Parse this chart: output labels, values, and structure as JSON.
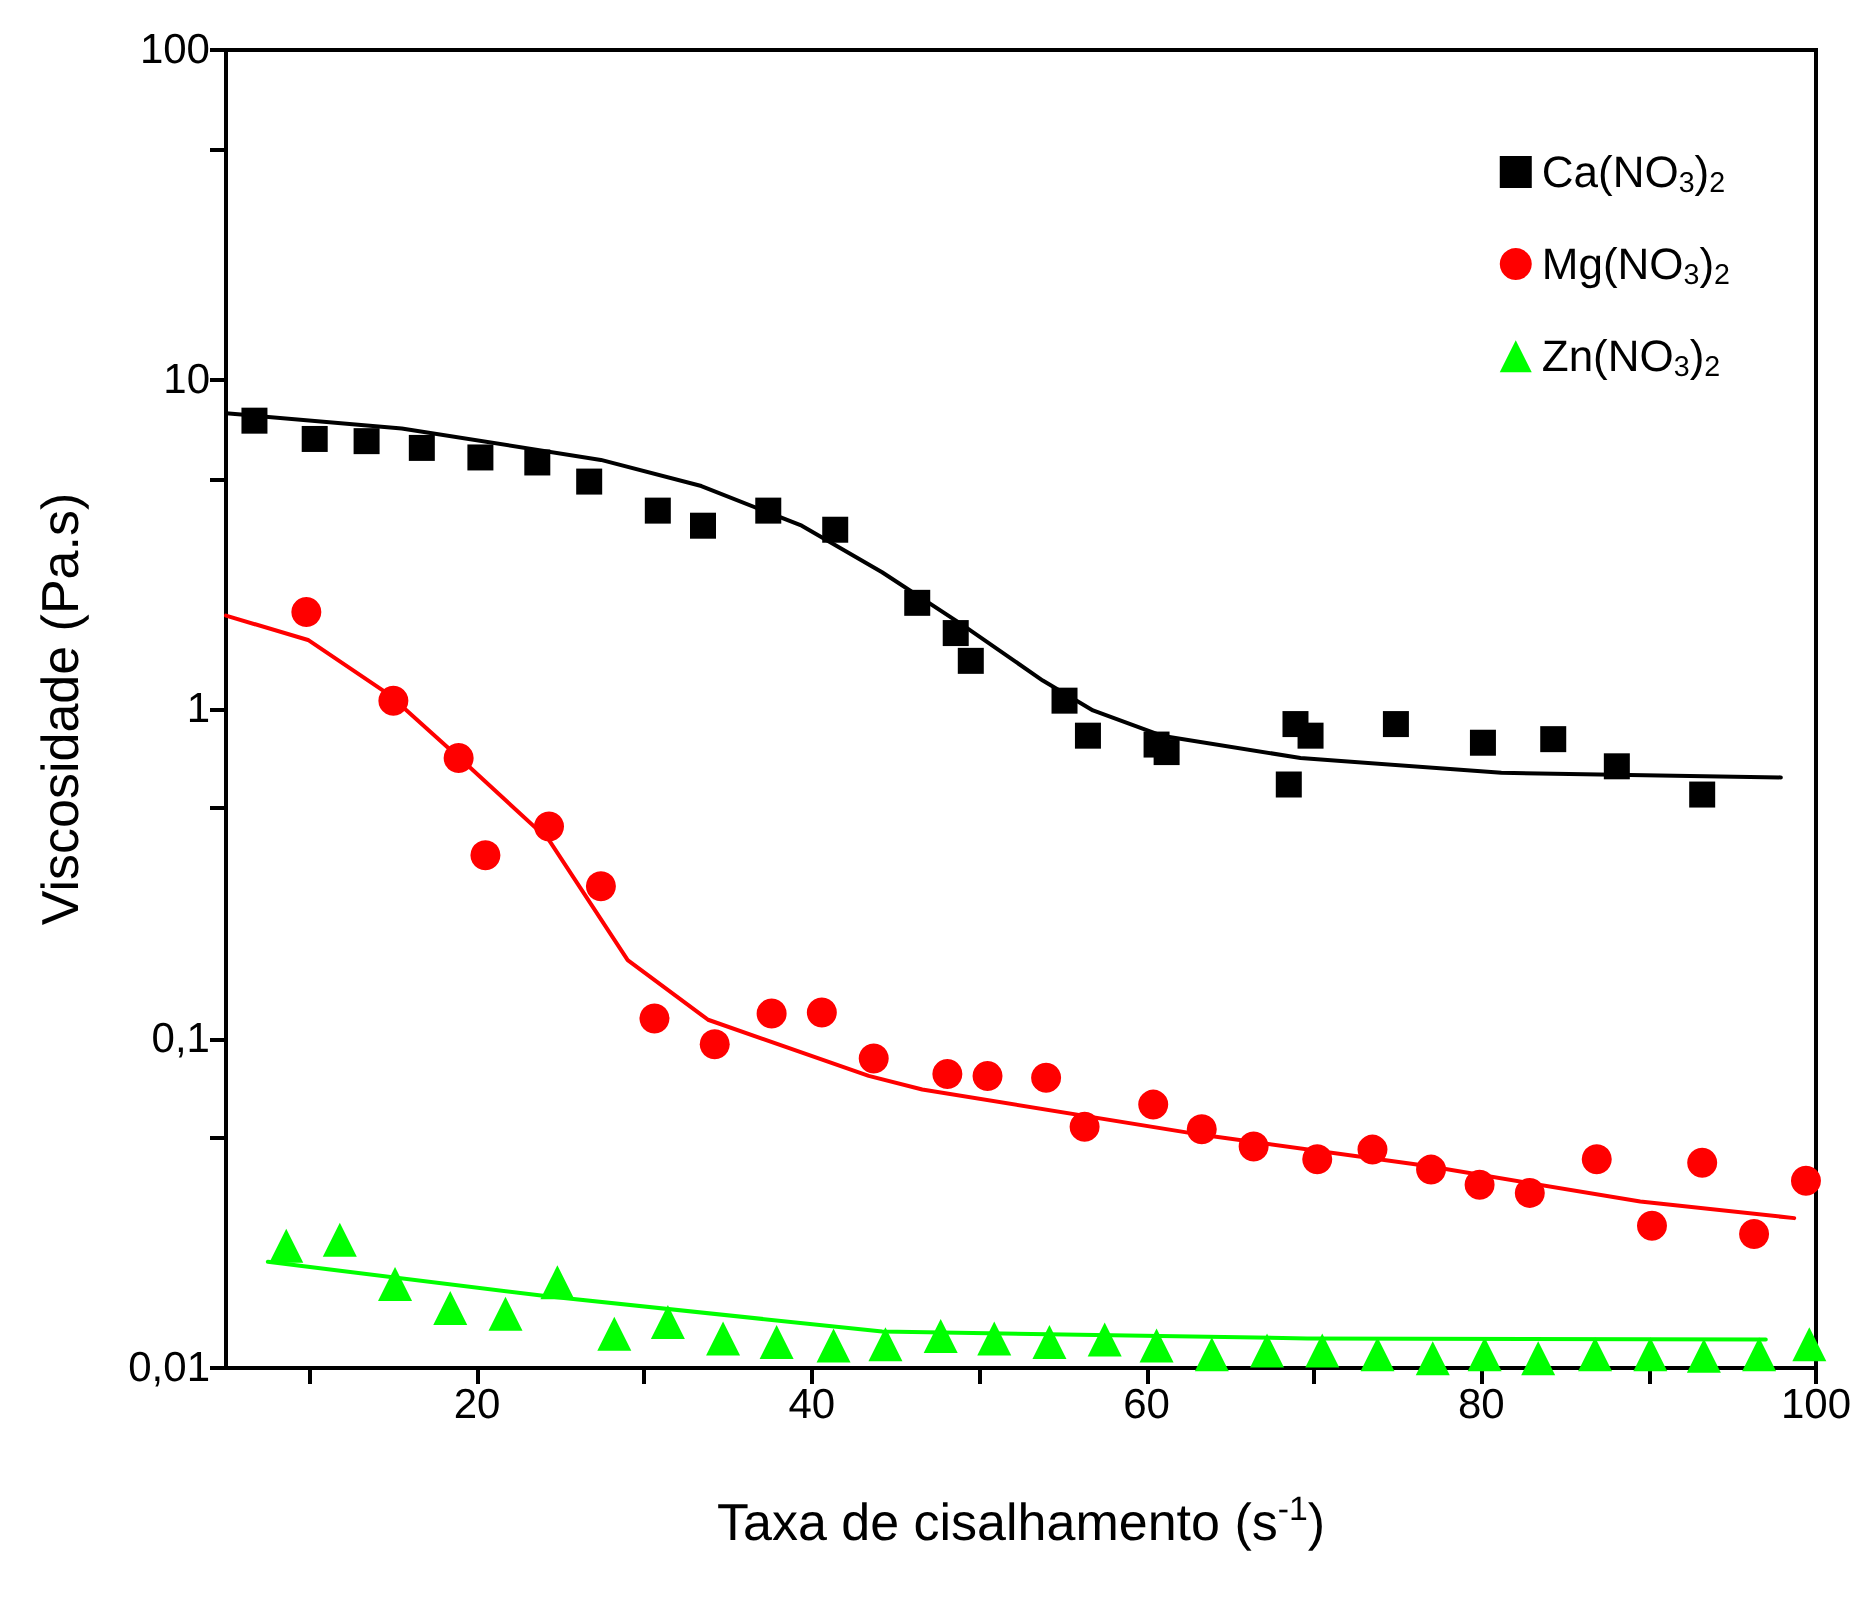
{
  "chart_data": {
    "type": "scatter",
    "xlabel": "Taxa de cisalhamento (s$^{-1}$)",
    "ylabel": "Viscosidade (Pa.s)",
    "log": "y",
    "legend": "top right",
    "grid": false,
    "xlim": [
      5,
      100
    ],
    "xticks": [
      {
        "value": 10,
        "label": null
      },
      20,
      {
        "value": 30,
        "label": null
      },
      40,
      {
        "value": 50,
        "label": null
      },
      60,
      {
        "value": 70,
        "label": null
      },
      80,
      {
        "value": 90,
        "label": null
      },
      100
    ],
    "ylim": [
      0.01,
      100
    ],
    "yticks": [
      {
        "value": 0.01,
        "label": "0,01"
      },
      {
        "value": 0.05,
        "label": null
      },
      {
        "value": 0.1,
        "label": "0,1"
      },
      {
        "value": 0.5,
        "label": null
      },
      1,
      {
        "value": 5,
        "label": null
      },
      10,
      {
        "value": 50,
        "label": null
      },
      100
    ],
    "series": [
      {
        "name": "Ca(NO$_{3}$)$_{2}$",
        "marker": "square",
        "color": "#000000",
        "x": [
          6.7,
          10.3,
          13.4,
          16.7,
          20.2,
          23.6,
          26.7,
          30.8,
          33.5,
          37.4,
          41.4,
          46.3,
          48.6,
          49.5,
          55.1,
          56.5,
          60.6,
          61.2,
          68.5,
          68.9,
          69.8,
          74.9,
          80.1,
          84.3,
          88.1,
          93.2
        ],
        "values": [
          7.5,
          6.6,
          6.5,
          6.2,
          5.8,
          5.6,
          4.9,
          4.0,
          3.6,
          4.0,
          3.5,
          2.1,
          1.7,
          1.4,
          1.06,
          0.83,
          0.78,
          0.74,
          0.59,
          0.9,
          0.83,
          0.9,
          0.79,
          0.81,
          0.67,
          0.55
        ]
      },
      {
        "name": "Mg(NO$_{3}$)$_{2}$",
        "marker": "circle",
        "color": "#ff0000",
        "x": [
          9.8,
          15.0,
          18.9,
          20.5,
          24.3,
          27.4,
          30.6,
          34.2,
          37.6,
          40.6,
          43.7,
          48.1,
          50.5,
          54.0,
          56.3,
          60.4,
          63.3,
          66.4,
          70.2,
          73.5,
          77.0,
          79.9,
          82.9,
          86.9,
          90.2,
          93.2,
          96.3,
          99.4
        ],
        "values": [
          1.97,
          1.06,
          0.71,
          0.36,
          0.44,
          0.29,
          0.115,
          0.096,
          0.119,
          0.12,
          0.087,
          0.078,
          0.077,
          0.076,
          0.054,
          0.063,
          0.053,
          0.047,
          0.043,
          0.046,
          0.04,
          0.036,
          0.034,
          0.043,
          0.027,
          0.042,
          0.0255,
          0.037
        ]
      },
      {
        "name": "Zn(NO$_{3}$)$_{2}$",
        "marker": "triangle",
        "color": "#00ff00",
        "x": [
          8.6,
          11.8,
          15.1,
          18.4,
          21.7,
          24.8,
          28.2,
          31.4,
          34.7,
          37.9,
          41.3,
          44.4,
          47.7,
          50.9,
          54.2,
          57.5,
          60.6,
          63.9,
          67.2,
          70.5,
          73.8,
          77.1,
          80.2,
          83.4,
          86.8,
          90.1,
          93.3,
          96.6,
          99.6
        ],
        "values": [
          0.0235,
          0.0245,
          0.018,
          0.0152,
          0.0146,
          0.0182,
          0.0127,
          0.0138,
          0.0123,
          0.012,
          0.0117,
          0.0118,
          0.0125,
          0.0123,
          0.012,
          0.0122,
          0.0117,
          0.011,
          0.0113,
          0.0113,
          0.011,
          0.0107,
          0.011,
          0.0107,
          0.011,
          0.011,
          0.0109,
          0.011,
          0.0118
        ]
      },
      {
        "type": "line",
        "marker": "none",
        "color": "#000000",
        "x": [
          5,
          15.5,
          27.4,
          33.4,
          39.4,
          44.2,
          49.0,
          53.8,
          56.8,
          60.9,
          69.2,
          81.2,
          97.9
        ],
        "values": [
          7.9,
          7.1,
          5.7,
          4.75,
          3.6,
          2.6,
          1.8,
          1.22,
          0.99,
          0.83,
          0.71,
          0.64,
          0.62
        ]
      },
      {
        "type": "line",
        "marker": "none",
        "color": "#ff0000",
        "x": [
          5,
          9.9,
          14.7,
          19.5,
          24.3,
          29.0,
          33.8,
          43.4,
          46.6,
          63.3,
          76.8,
          89.5,
          98.7
        ],
        "values": [
          1.92,
          1.62,
          1.11,
          0.67,
          0.4,
          0.173,
          0.114,
          0.077,
          0.07,
          0.051,
          0.041,
          0.032,
          0.0285
        ]
      },
      {
        "type": "line",
        "marker": "none",
        "color": "#00ff00",
        "x": [
          7.5,
          24.2,
          44.2,
          69.6,
          97.0
        ],
        "values": [
          0.021,
          0.0165,
          0.0129,
          0.0123,
          0.0122
        ]
      }
    ]
  }
}
